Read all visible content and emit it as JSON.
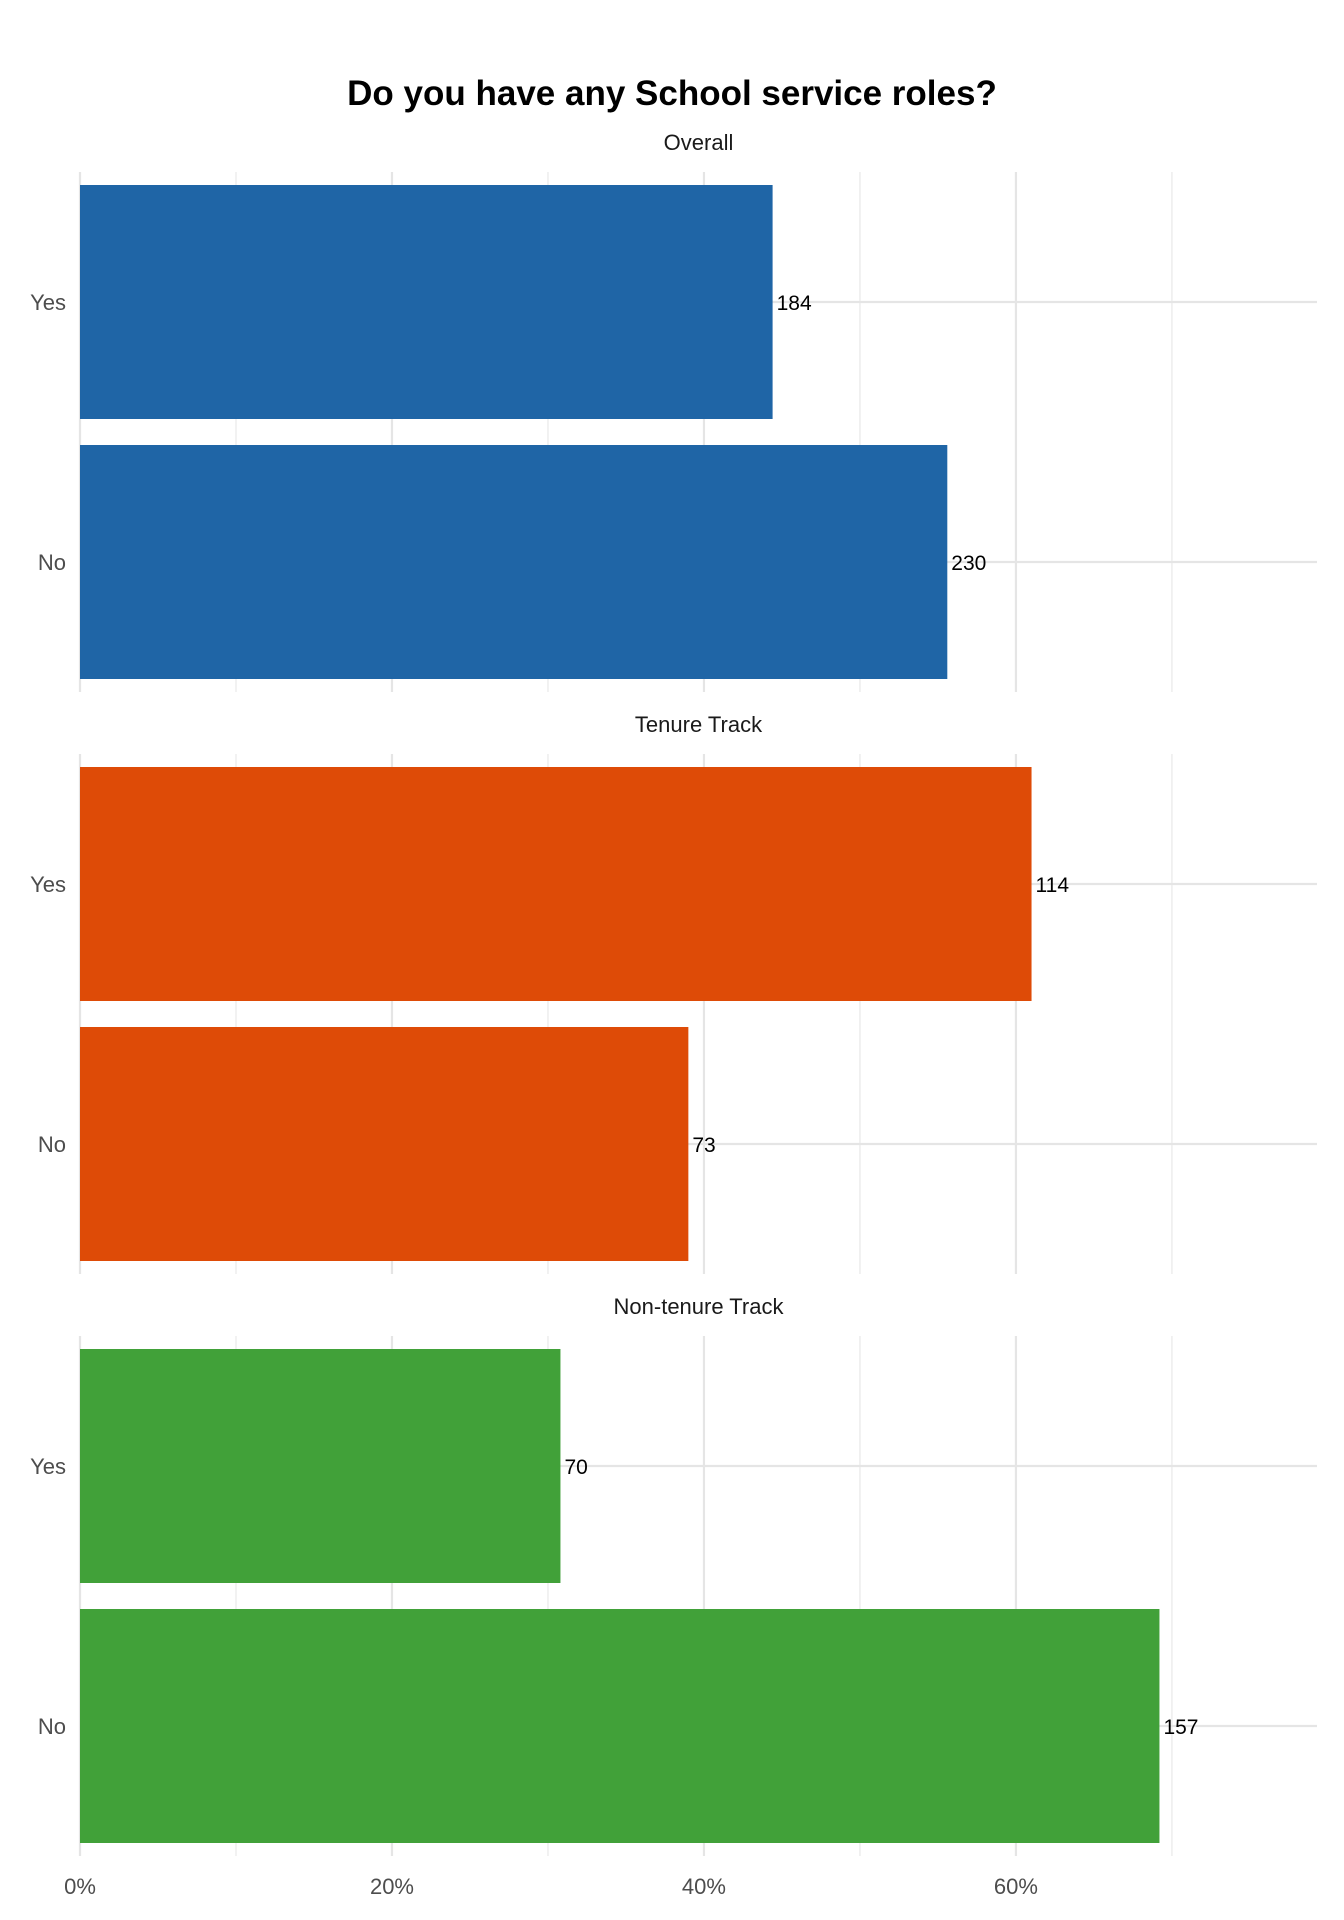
{
  "chart_data": {
    "type": "bar",
    "orientation": "horizontal",
    "title": "Do you have any School service roles?",
    "xlabel": "",
    "ylabel": "",
    "x_format": "percent",
    "xlim": [
      0,
      79.3
    ],
    "x_ticks": [
      0,
      20,
      40,
      60
    ],
    "x_tick_labels": [
      "0%",
      "20%",
      "40%",
      "60%"
    ],
    "grid": true,
    "legend": "none",
    "categories": [
      "Yes",
      "No"
    ],
    "facets": [
      {
        "title": "Overall",
        "color": "#1f65a6",
        "categories": [
          "Yes",
          "No"
        ],
        "values_pct": [
          44.4,
          55.6
        ],
        "labels": [
          "184",
          "230"
        ]
      },
      {
        "title": "Tenure Track",
        "color": "#de4b07",
        "categories": [
          "Yes",
          "No"
        ],
        "values_pct": [
          61.0,
          39.0
        ],
        "labels": [
          "114",
          "73"
        ]
      },
      {
        "title": "Non-tenure Track",
        "color": "#41a139",
        "categories": [
          "Yes",
          "No"
        ],
        "values_pct": [
          30.8,
          69.2
        ],
        "labels": [
          "70",
          "157"
        ]
      }
    ]
  }
}
